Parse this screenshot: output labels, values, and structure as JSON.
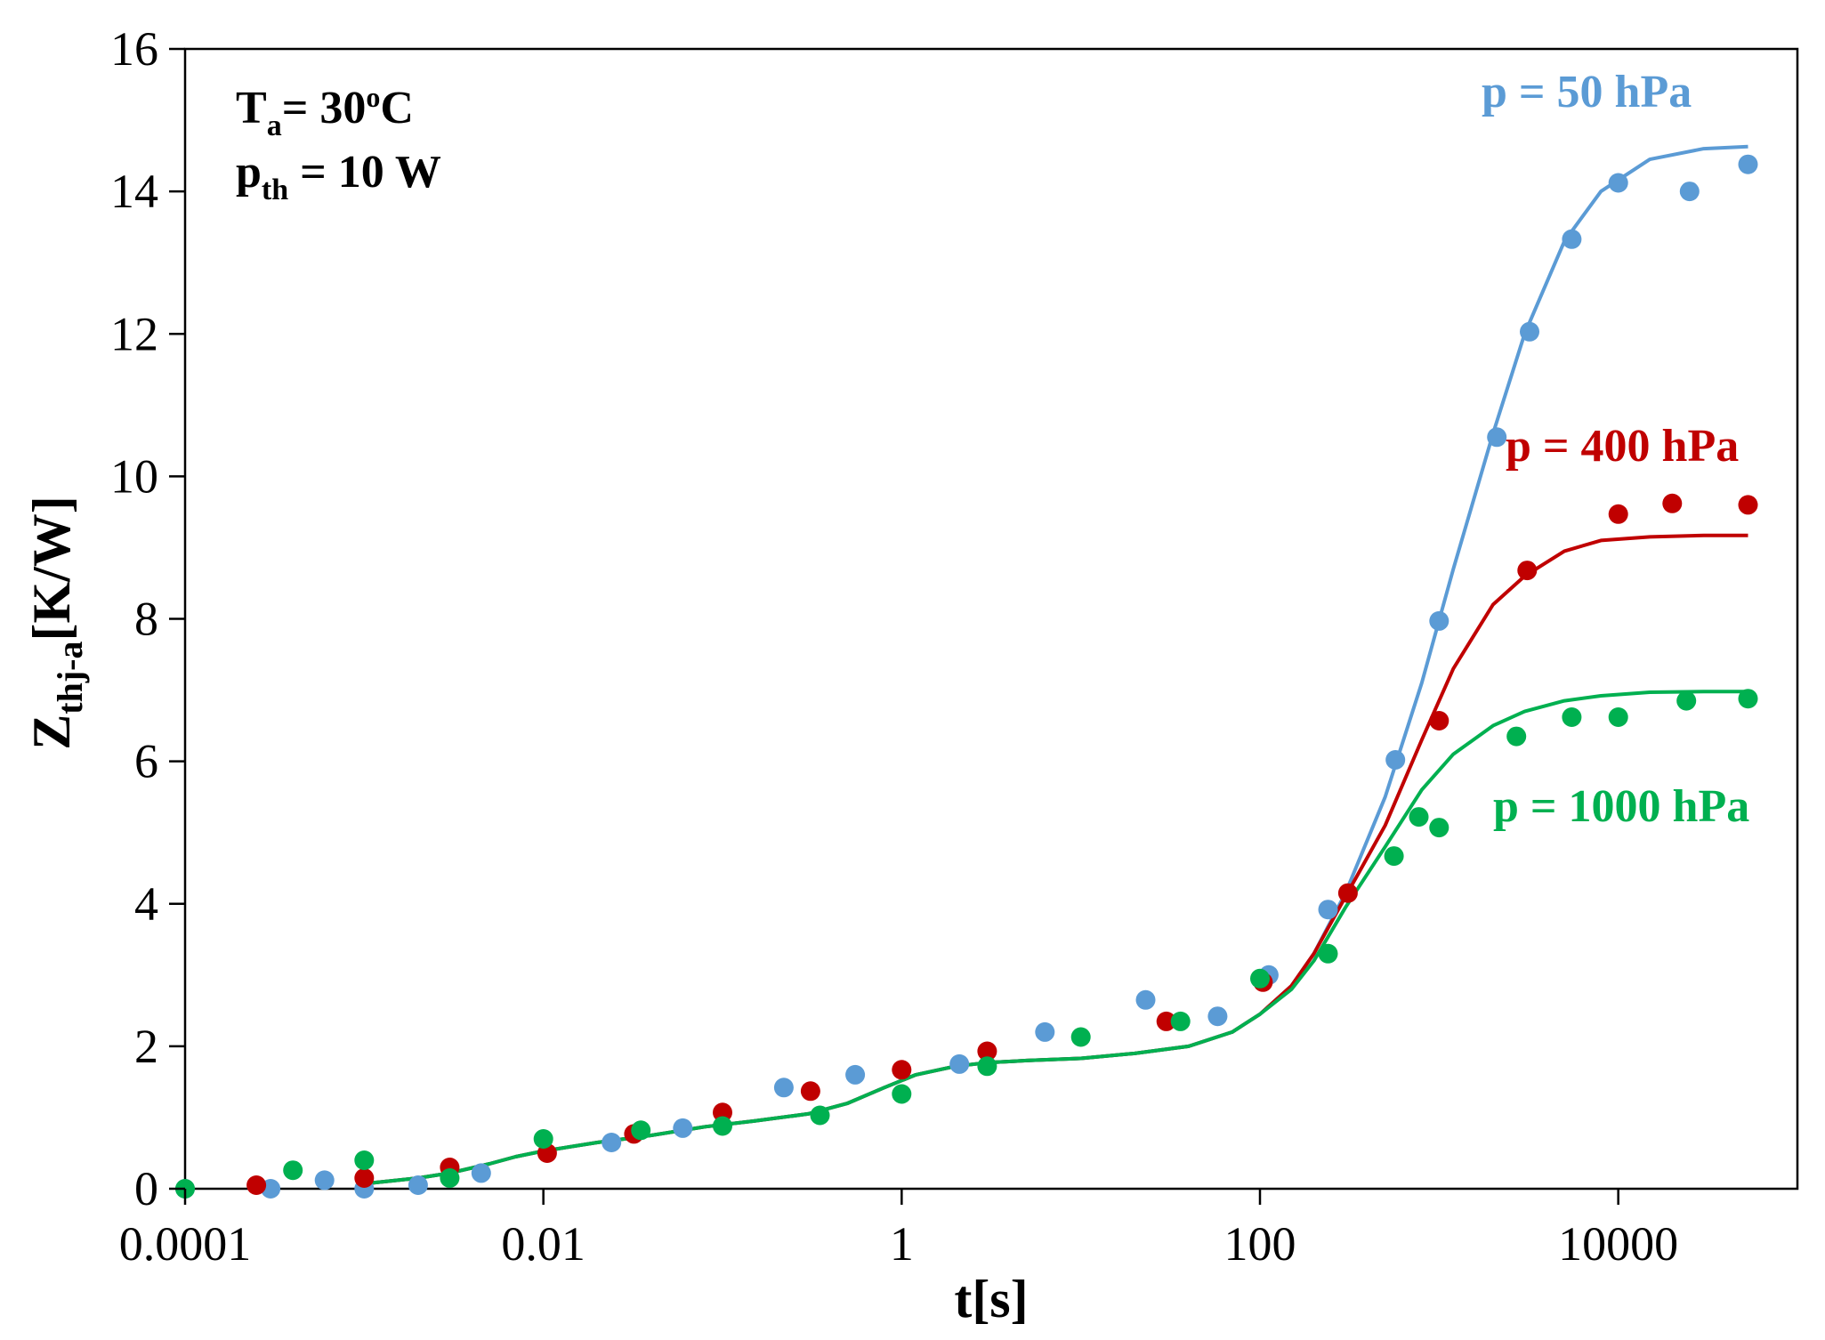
{
  "chart_data": {
    "type": "scatter",
    "title": "",
    "xlabel": "t[s]",
    "ylabel": "Z",
    "ylabel_sub": "thj-a",
    "ylabel_unit": "[K/W]",
    "xscale": "log",
    "xlim": [
      0.0001,
      100000
    ],
    "ylim": [
      0,
      16
    ],
    "x_ticks": [
      0.0001,
      0.01,
      1,
      100,
      10000
    ],
    "x_tick_labels": [
      "0.0001",
      "0.01",
      "1",
      "100",
      "10000"
    ],
    "y_ticks": [
      0,
      2,
      4,
      6,
      8,
      10,
      12,
      14,
      16
    ],
    "y_tick_labels": [
      "0",
      "2",
      "4",
      "6",
      "8",
      "10",
      "12",
      "14",
      "16"
    ],
    "grid": false,
    "annotations": {
      "ta_main": "T",
      "ta_sub": "a",
      "ta_rest": "= 30",
      "ta_sup": "o",
      "ta_unit": "C",
      "pth_main": "p",
      "pth_sub": "th",
      "pth_rest": " = 10 W"
    },
    "series": [
      {
        "name": "p = 50 hPa",
        "color": "#5b9bd5",
        "legend_position": "top-right",
        "points": [
          [
            0.0001,
            0.0
          ],
          [
            0.0003,
            0.0
          ],
          [
            0.0006,
            0.12
          ],
          [
            0.001,
            0.0
          ],
          [
            0.002,
            0.05
          ],
          [
            0.0045,
            0.22
          ],
          [
            0.024,
            0.65
          ],
          [
            0.06,
            0.85
          ],
          [
            0.22,
            1.42
          ],
          [
            0.55,
            1.6
          ],
          [
            2.1,
            1.75
          ],
          [
            6.3,
            2.2
          ],
          [
            23,
            2.65
          ],
          [
            58,
            2.42
          ],
          [
            112,
            3.0
          ],
          [
            240,
            3.92
          ],
          [
            570,
            6.02
          ],
          [
            1000,
            7.97
          ],
          [
            2100,
            10.55
          ],
          [
            3200,
            12.03
          ],
          [
            5500,
            13.33
          ],
          [
            10000,
            14.12
          ],
          [
            25000,
            14.0
          ],
          [
            53000,
            14.38
          ]
        ],
        "fit": [
          [
            0.001,
            0.07
          ],
          [
            0.002,
            0.15
          ],
          [
            0.003,
            0.22
          ],
          [
            0.005,
            0.35
          ],
          [
            0.007,
            0.45
          ],
          [
            0.01,
            0.53
          ],
          [
            0.02,
            0.65
          ],
          [
            0.04,
            0.75
          ],
          [
            0.08,
            0.87
          ],
          [
            0.15,
            0.95
          ],
          [
            0.3,
            1.05
          ],
          [
            0.5,
            1.2
          ],
          [
            0.8,
            1.42
          ],
          [
            1.2,
            1.6
          ],
          [
            2.0,
            1.72
          ],
          [
            3.0,
            1.77
          ],
          [
            5.0,
            1.8
          ],
          [
            10,
            1.83
          ],
          [
            20,
            1.9
          ],
          [
            40,
            2.0
          ],
          [
            70,
            2.2
          ],
          [
            100,
            2.45
          ],
          [
            150,
            2.85
          ],
          [
            200,
            3.3
          ],
          [
            300,
            4.15
          ],
          [
            500,
            5.5
          ],
          [
            800,
            7.1
          ],
          [
            1200,
            8.7
          ],
          [
            2000,
            10.6
          ],
          [
            3000,
            12.0
          ],
          [
            5000,
            13.3
          ],
          [
            8000,
            14.0
          ],
          [
            15000,
            14.45
          ],
          [
            30000,
            14.6
          ],
          [
            53000,
            14.63
          ]
        ]
      },
      {
        "name": "p = 400 hPa",
        "color": "#c00000",
        "legend_position": "right",
        "points": [
          [
            0.00025,
            0.05
          ],
          [
            0.001,
            0.15
          ],
          [
            0.003,
            0.3
          ],
          [
            0.0105,
            0.5
          ],
          [
            0.032,
            0.77
          ],
          [
            0.1,
            1.07
          ],
          [
            0.31,
            1.37
          ],
          [
            1.0,
            1.67
          ],
          [
            3.0,
            1.93
          ],
          [
            30,
            2.35
          ],
          [
            104,
            2.9
          ],
          [
            310,
            4.15
          ],
          [
            1000,
            6.57
          ],
          [
            3100,
            8.68
          ],
          [
            10000,
            9.47
          ],
          [
            20000,
            9.62
          ],
          [
            53000,
            9.6
          ]
        ],
        "fit": [
          [
            0.001,
            0.07
          ],
          [
            0.002,
            0.15
          ],
          [
            0.003,
            0.22
          ],
          [
            0.005,
            0.35
          ],
          [
            0.007,
            0.45
          ],
          [
            0.01,
            0.53
          ],
          [
            0.02,
            0.65
          ],
          [
            0.04,
            0.75
          ],
          [
            0.08,
            0.87
          ],
          [
            0.15,
            0.95
          ],
          [
            0.3,
            1.05
          ],
          [
            0.5,
            1.2
          ],
          [
            0.8,
            1.42
          ],
          [
            1.2,
            1.6
          ],
          [
            2.0,
            1.72
          ],
          [
            3.0,
            1.77
          ],
          [
            5.0,
            1.8
          ],
          [
            10,
            1.83
          ],
          [
            20,
            1.9
          ],
          [
            40,
            2.0
          ],
          [
            70,
            2.2
          ],
          [
            100,
            2.45
          ],
          [
            150,
            2.85
          ],
          [
            200,
            3.3
          ],
          [
            300,
            4.1
          ],
          [
            500,
            5.1
          ],
          [
            800,
            6.3
          ],
          [
            1200,
            7.3
          ],
          [
            2000,
            8.2
          ],
          [
            3000,
            8.6
          ],
          [
            5000,
            8.95
          ],
          [
            8000,
            9.1
          ],
          [
            15000,
            9.15
          ],
          [
            30000,
            9.17
          ],
          [
            53000,
            9.17
          ]
        ]
      },
      {
        "name": "p = 1000 hPa",
        "color": "#00b050",
        "legend_position": "right",
        "points": [
          [
            0.0001,
            0.0
          ],
          [
            0.0004,
            0.26
          ],
          [
            0.001,
            0.4
          ],
          [
            0.003,
            0.15
          ],
          [
            0.01,
            0.7
          ],
          [
            0.035,
            0.82
          ],
          [
            0.1,
            0.88
          ],
          [
            0.35,
            1.03
          ],
          [
            1.0,
            1.33
          ],
          [
            3.0,
            1.72
          ],
          [
            10,
            2.13
          ],
          [
            36,
            2.35
          ],
          [
            100,
            2.95
          ],
          [
            240,
            3.3
          ],
          [
            560,
            4.67
          ],
          [
            770,
            5.22
          ],
          [
            1000,
            5.07
          ],
          [
            2700,
            6.35
          ],
          [
            5500,
            6.62
          ],
          [
            10000,
            6.62
          ],
          [
            24000,
            6.85
          ],
          [
            53000,
            6.88
          ]
        ],
        "fit": [
          [
            0.001,
            0.07
          ],
          [
            0.002,
            0.15
          ],
          [
            0.003,
            0.22
          ],
          [
            0.005,
            0.35
          ],
          [
            0.007,
            0.45
          ],
          [
            0.01,
            0.53
          ],
          [
            0.02,
            0.65
          ],
          [
            0.04,
            0.75
          ],
          [
            0.08,
            0.87
          ],
          [
            0.15,
            0.95
          ],
          [
            0.3,
            1.05
          ],
          [
            0.5,
            1.2
          ],
          [
            0.8,
            1.42
          ],
          [
            1.2,
            1.6
          ],
          [
            2.0,
            1.72
          ],
          [
            3.0,
            1.77
          ],
          [
            5.0,
            1.8
          ],
          [
            10,
            1.83
          ],
          [
            20,
            1.9
          ],
          [
            40,
            2.0
          ],
          [
            70,
            2.2
          ],
          [
            100,
            2.45
          ],
          [
            150,
            2.8
          ],
          [
            200,
            3.2
          ],
          [
            300,
            3.95
          ],
          [
            500,
            4.8
          ],
          [
            800,
            5.6
          ],
          [
            1200,
            6.1
          ],
          [
            2000,
            6.5
          ],
          [
            3000,
            6.7
          ],
          [
            5000,
            6.85
          ],
          [
            8000,
            6.92
          ],
          [
            15000,
            6.97
          ],
          [
            30000,
            6.98
          ],
          [
            53000,
            6.98
          ]
        ]
      }
    ]
  }
}
